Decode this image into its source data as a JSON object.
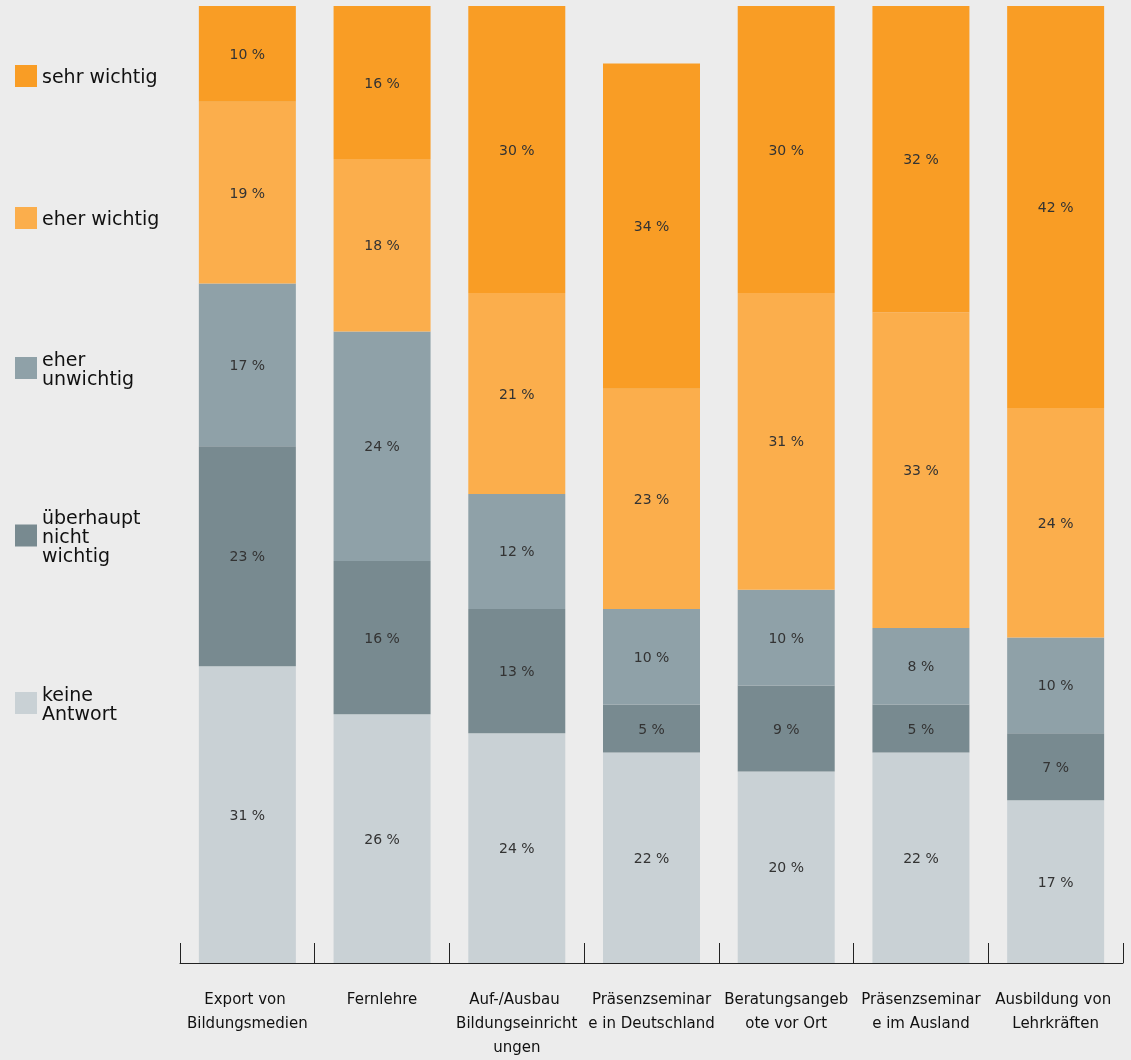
{
  "chart_data": {
    "type": "bar",
    "stacked": true,
    "legend": "left",
    "categories": [
      "Export von Bildungsmedien",
      "Fernlehre",
      "Auf-/Ausbau Bildungseinrichtungen",
      "Präsenzseminare in Deutschland",
      "Beratungsangebote vor Ort",
      "Präsenzseminare im Ausland",
      "Ausbildung von Lehrkräften"
    ],
    "ylim": [
      0,
      100
    ],
    "series": [
      {
        "name": "keine Antwort",
        "color": "#c9d1d5",
        "values": [
          31,
          26,
          24,
          22,
          20,
          22,
          17
        ],
        "value_labels": [
          "31 %",
          "26 %",
          "24 %",
          "22 %",
          "20 %",
          "22 %",
          "17 %"
        ]
      },
      {
        "name": "überhaupt nicht wichtig",
        "color": "#788a90",
        "values": [
          23,
          16,
          13,
          5,
          9,
          5,
          7
        ],
        "value_labels": [
          "23 %",
          "16 %",
          "13 %",
          "5 %",
          "9 %",
          "5 %",
          "7 %"
        ]
      },
      {
        "name": "eher unwichtig",
        "color": "#8fa1a8",
        "values": [
          17,
          24,
          12,
          10,
          10,
          8,
          10
        ],
        "value_labels": [
          "17 %",
          "24 %",
          "12 %",
          "10 %",
          "10 %",
          "8 %",
          "10 %"
        ]
      },
      {
        "name": "eher wichtig",
        "color": "#fbae4c",
        "values": [
          19,
          18,
          21,
          23,
          31,
          33,
          24
        ],
        "value_labels": [
          "19 %",
          "18 %",
          "21 %",
          "23 %",
          "31 %",
          "33 %",
          "24 %"
        ]
      },
      {
        "name": "sehr wichtig",
        "color": "#f99d25",
        "values": [
          10,
          16,
          30,
          34,
          30,
          32,
          42
        ],
        "value_labels": [
          "10 %",
          "16 %",
          "30 %",
          "34 %",
          "30 %",
          "32 %",
          "42 %"
        ]
      }
    ]
  }
}
